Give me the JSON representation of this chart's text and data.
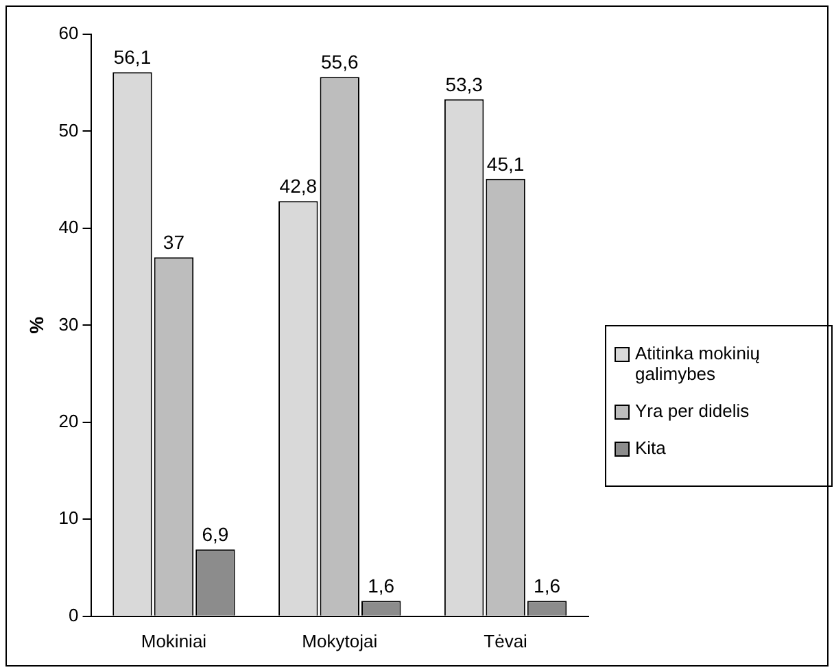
{
  "chart_data": {
    "type": "bar",
    "ylabel": "%",
    "categories": [
      "Mokiniai",
      "Mokytojai",
      "Tėvai"
    ],
    "series": [
      {
        "name": "Atitinka mokinių galimybes",
        "color": "#d9d9d9",
        "values": [
          56.1,
          42.8,
          53.3
        ],
        "value_labels": [
          "56,1",
          "42,8",
          "53,3"
        ]
      },
      {
        "name": "Yra per didelis",
        "color": "#bdbdbd",
        "values": [
          37,
          55.6,
          45.1
        ],
        "value_labels": [
          "37",
          "55,6",
          "45,1"
        ]
      },
      {
        "name": "Kita",
        "color": "#8c8c8c",
        "values": [
          6.9,
          1.6,
          1.6
        ],
        "value_labels": [
          "6,9",
          "1,6",
          "1,6"
        ]
      }
    ],
    "ylim": [
      0,
      60
    ],
    "yticks": [
      0,
      10,
      20,
      30,
      40,
      50,
      60
    ],
    "grid": false,
    "legend": "right"
  }
}
